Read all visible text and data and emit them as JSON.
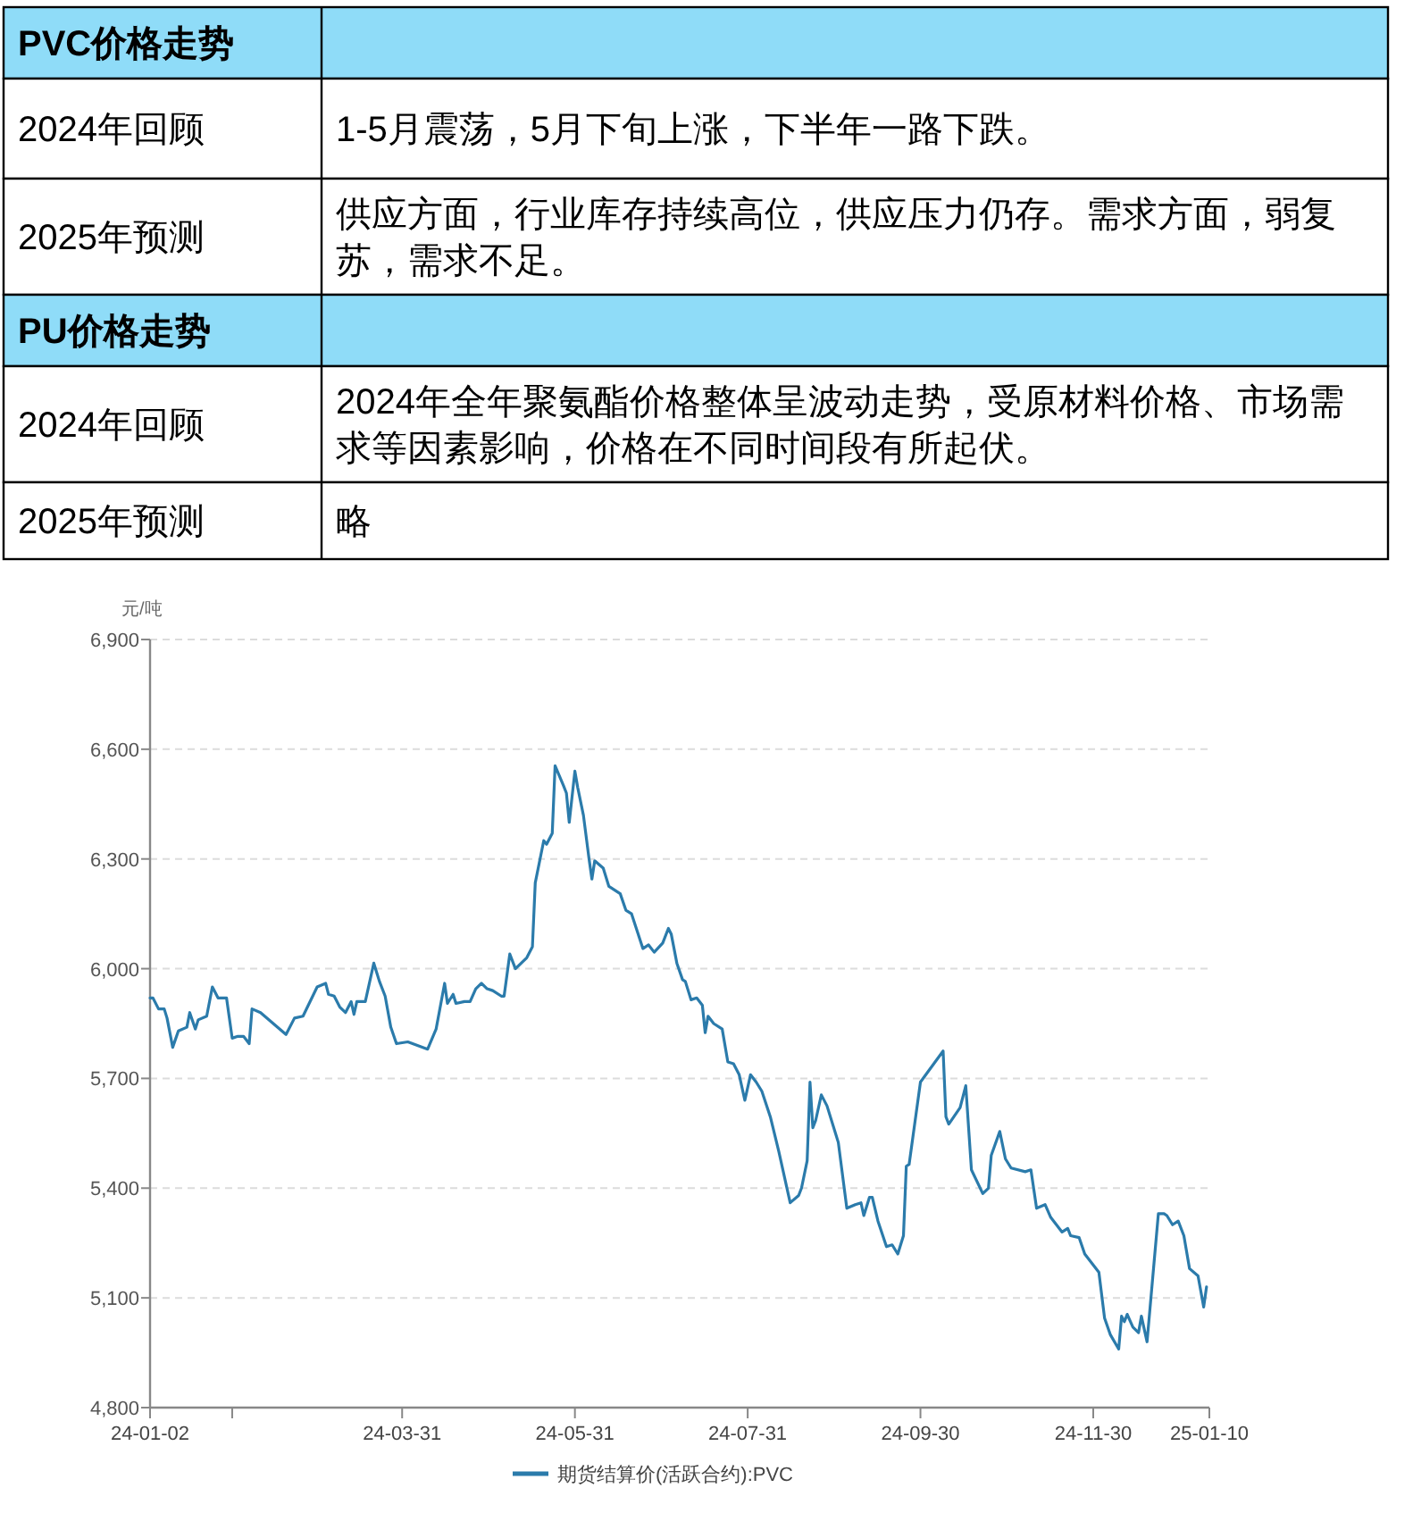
{
  "chart_data": {
    "type": "line",
    "annotations": [
      "PVC价格走势",
      "2024年回顾",
      "1-5月震荡，5月下旬上涨，下半年一路下跌。",
      "2025年预测",
      "供应方面，行业库存持续高位，供应压力仍存。需求方面，弱复苏，需求不足。",
      "PU价格走势",
      "2024年回顾",
      "2024年全年聚氨酯价格整体呈波动走势，受原材料价格、市场需求等因素影响，价格在不同时间段有所起伏。",
      "2025年预测",
      "略"
    ],
    "ylabel": "元/吨",
    "xlim": [
      "2024-01-02",
      "2025-01-10"
    ],
    "xticks": [
      {
        "value": "2024-01-02",
        "label": "24-01-02"
      },
      {
        "value": "2024-01-31",
        "label": null
      },
      {
        "value": "2024-03-31",
        "label": "24-03-31"
      },
      {
        "value": "2024-05-31",
        "label": "24-05-31"
      },
      {
        "value": "2024-07-31",
        "label": "24-07-31"
      },
      {
        "value": "2024-09-30",
        "label": "24-09-30"
      },
      {
        "value": "2024-11-30",
        "label": "24-11-30"
      },
      {
        "value": "2025-01-10",
        "label": "25-01-10"
      }
    ],
    "ylim": [
      4800,
      6900
    ],
    "yticks": [
      {
        "value": 4800,
        "label": "4,800"
      },
      {
        "value": 5100,
        "label": "5,100"
      },
      {
        "value": 5400,
        "label": "5,400"
      },
      {
        "value": 5700,
        "label": "5,700"
      },
      {
        "value": 6000,
        "label": "6,000"
      },
      {
        "value": 6300,
        "label": "6,300"
      },
      {
        "value": 6600,
        "label": "6,600"
      },
      {
        "value": 6900,
        "label": "6,900"
      }
    ],
    "grid": "y",
    "legend": "bottom",
    "marker": "none",
    "line_style": "solid",
    "series": [
      {
        "name": "期货结算价(活跃合约):PVC",
        "color": "#2b7bab",
        "x": [
          "2024-01-02",
          "2024-01-03",
          "2024-01-05",
          "2024-01-07",
          "2024-01-08",
          "2024-01-10",
          "2024-01-12",
          "2024-01-15",
          "2024-01-16",
          "2024-01-18",
          "2024-01-19",
          "2024-01-22",
          "2024-01-24",
          "2024-01-26",
          "2024-01-29",
          "2024-01-31",
          "2024-02-02",
          "2024-02-04",
          "2024-02-06",
          "2024-02-07",
          "2024-02-10",
          "2024-02-19",
          "2024-02-22",
          "2024-02-25",
          "2024-03-01",
          "2024-03-04",
          "2024-03-05",
          "2024-03-07",
          "2024-03-09",
          "2024-03-11",
          "2024-03-13",
          "2024-03-14",
          "2024-03-15",
          "2024-03-18",
          "2024-03-21",
          "2024-03-23",
          "2024-03-25",
          "2024-03-27",
          "2024-03-29",
          "2024-04-02",
          "2024-04-09",
          "2024-04-12",
          "2024-04-15",
          "2024-04-16",
          "2024-04-18",
          "2024-04-19",
          "2024-04-22",
          "2024-04-24",
          "2024-04-26",
          "2024-04-28",
          "2024-04-30",
          "2024-05-02",
          "2024-05-05",
          "2024-05-06",
          "2024-05-08",
          "2024-05-10",
          "2024-05-14",
          "2024-05-16",
          "2024-05-17",
          "2024-05-20",
          "2024-05-21",
          "2024-05-23",
          "2024-05-24",
          "2024-05-27",
          "2024-05-28",
          "2024-05-29",
          "2024-05-31",
          "2024-06-01",
          "2024-06-03",
          "2024-06-05",
          "2024-06-06",
          "2024-06-07",
          "2024-06-10",
          "2024-06-12",
          "2024-06-16",
          "2024-06-18",
          "2024-06-20",
          "2024-06-24",
          "2024-06-26",
          "2024-06-28",
          "2024-07-01",
          "2024-07-03",
          "2024-07-04",
          "2024-07-06",
          "2024-07-08",
          "2024-07-09",
          "2024-07-11",
          "2024-07-13",
          "2024-07-15",
          "2024-07-16",
          "2024-07-17",
          "2024-07-19",
          "2024-07-22",
          "2024-07-24",
          "2024-07-26",
          "2024-07-28",
          "2024-07-30",
          "2024-08-01",
          "2024-08-03",
          "2024-08-05",
          "2024-08-08",
          "2024-08-11",
          "2024-08-15",
          "2024-08-18",
          "2024-08-19",
          "2024-08-21",
          "2024-08-22",
          "2024-08-23",
          "2024-08-24",
          "2024-08-26",
          "2024-08-28",
          "2024-09-01",
          "2024-09-04",
          "2024-09-07",
          "2024-09-09",
          "2024-09-10",
          "2024-09-12",
          "2024-09-13",
          "2024-09-15",
          "2024-09-18",
          "2024-09-20",
          "2024-09-22",
          "2024-09-24",
          "2024-09-25",
          "2024-09-26",
          "2024-09-30",
          "2024-10-08",
          "2024-10-09",
          "2024-10-10",
          "2024-10-14",
          "2024-10-16",
          "2024-10-18",
          "2024-10-22",
          "2024-10-24",
          "2024-10-25",
          "2024-10-28",
          "2024-10-30",
          "2024-11-01",
          "2024-11-06",
          "2024-11-08",
          "2024-11-10",
          "2024-11-13",
          "2024-11-15",
          "2024-11-19",
          "2024-11-21",
          "2024-11-22",
          "2024-11-25",
          "2024-11-27",
          "2024-12-02",
          "2024-12-04",
          "2024-12-06",
          "2024-12-09",
          "2024-12-10",
          "2024-12-11",
          "2024-12-12",
          "2024-12-14",
          "2024-12-16",
          "2024-12-17",
          "2024-12-19",
          "2024-12-23",
          "2024-12-25",
          "2024-12-26",
          "2024-12-28",
          "2024-12-30",
          "2025-01-01",
          "2025-01-03",
          "2025-01-06",
          "2025-01-08",
          "2025-01-09"
        ],
        "values": [
          5920,
          5920,
          5890,
          5890,
          5865,
          5785,
          5830,
          5840,
          5880,
          5835,
          5860,
          5870,
          5950,
          5920,
          5920,
          5810,
          5815,
          5815,
          5795,
          5890,
          5880,
          5820,
          5865,
          5870,
          5950,
          5960,
          5930,
          5925,
          5895,
          5880,
          5910,
          5875,
          5910,
          5910,
          6015,
          5965,
          5925,
          5840,
          5795,
          5800,
          5780,
          5835,
          5960,
          5905,
          5930,
          5905,
          5910,
          5910,
          5945,
          5960,
          5945,
          5940,
          5925,
          5925,
          6040,
          6000,
          6030,
          6060,
          6235,
          6350,
          6340,
          6370,
          6555,
          6500,
          6480,
          6400,
          6540,
          6495,
          6420,
          6300,
          6245,
          6295,
          6275,
          6225,
          6205,
          6160,
          6150,
          6055,
          6065,
          6045,
          6070,
          6110,
          6095,
          6015,
          5970,
          5965,
          5915,
          5920,
          5900,
          5825,
          5870,
          5850,
          5835,
          5745,
          5740,
          5710,
          5640,
          5710,
          5690,
          5665,
          5595,
          5500,
          5360,
          5380,
          5400,
          5475,
          5690,
          5565,
          5585,
          5655,
          5625,
          5525,
          5345,
          5355,
          5360,
          5325,
          5375,
          5375,
          5310,
          5240,
          5245,
          5220,
          5270,
          5460,
          5465,
          5690,
          5775,
          5595,
          5575,
          5620,
          5680,
          5450,
          5385,
          5400,
          5490,
          5555,
          5480,
          5455,
          5445,
          5450,
          5345,
          5355,
          5320,
          5280,
          5290,
          5270,
          5265,
          5220,
          5170,
          5045,
          5000,
          4960,
          5050,
          5035,
          5055,
          5020,
          5005,
          5050,
          4980,
          5330,
          5330,
          5325,
          5300,
          5310,
          5270,
          5180,
          5160,
          5075,
          5130
        ]
      }
    ]
  }
}
